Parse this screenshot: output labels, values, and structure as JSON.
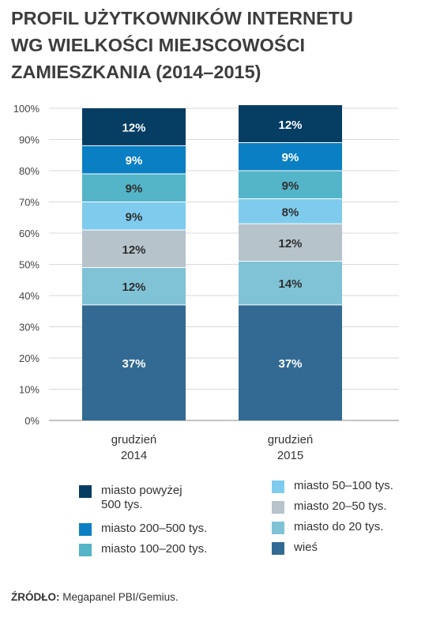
{
  "title_lines": [
    "PROFIL UŻYTKOWNIKÓW INTERNETU",
    "WG WIELKOŚCI MIEJSCOWOŚCI",
    "ZAMIESZKANIA (2014–2015)"
  ],
  "chart_data": {
    "type": "bar",
    "stacked": true,
    "categories": [
      "grudzień\n2014",
      "grudzień\n2015"
    ],
    "y_ticks": [
      "0%",
      "10%",
      "20%",
      "30%",
      "40%",
      "50%",
      "60%",
      "70%",
      "80%",
      "90%",
      "100%"
    ],
    "ylim": [
      0,
      100
    ],
    "grid": true,
    "series": [
      {
        "name": "wieś",
        "color": "#336a93",
        "values": [
          37,
          37
        ]
      },
      {
        "name": "miasto do 20 tys.",
        "color": "#80c3d6",
        "values": [
          12,
          14
        ]
      },
      {
        "name": "miasto 20–50 tys.",
        "color": "#b6c3cb",
        "values": [
          12,
          12
        ]
      },
      {
        "name": "miasto 50–100 tys.",
        "color": "#7fcbee",
        "values": [
          9,
          8
        ]
      },
      {
        "name": "miasto 100–200 tys.",
        "color": "#54b4c8",
        "values": [
          9,
          9
        ]
      },
      {
        "name": "miasto 200–500 tys.",
        "color": "#0b7fc3",
        "values": [
          9,
          9
        ]
      },
      {
        "name": "miasto powyżej\n500 tys.",
        "color": "#053d63",
        "values": [
          12,
          12
        ]
      }
    ],
    "data_labels": [
      [
        "37%",
        "12%",
        "12%",
        "9%",
        "9%",
        "9%",
        "12%"
      ],
      [
        "37%",
        "14%",
        "12%",
        "8%",
        "9%",
        "9%",
        "12%"
      ]
    ],
    "legend_position": "bottom"
  },
  "legend": {
    "left": [
      {
        "label": "miasto powyżej\n500 tys.",
        "color": "#053d63"
      },
      {
        "label": "miasto 200–500 tys.",
        "color": "#0b7fc3"
      },
      {
        "label": "miasto 100–200 tys.",
        "color": "#54b4c8"
      }
    ],
    "right": [
      {
        "label": "miasto 50–100 tys.",
        "color": "#7fcbee"
      },
      {
        "label": "miasto 20–50 tys.",
        "color": "#b6c3cb"
      },
      {
        "label": "miasto do 20 tys.",
        "color": "#80c3d6"
      },
      {
        "label": "wieś",
        "color": "#336a93"
      }
    ]
  },
  "source": {
    "label": "ŹRÓDŁO:",
    "text": " Megapanel PBI/Gemius."
  }
}
